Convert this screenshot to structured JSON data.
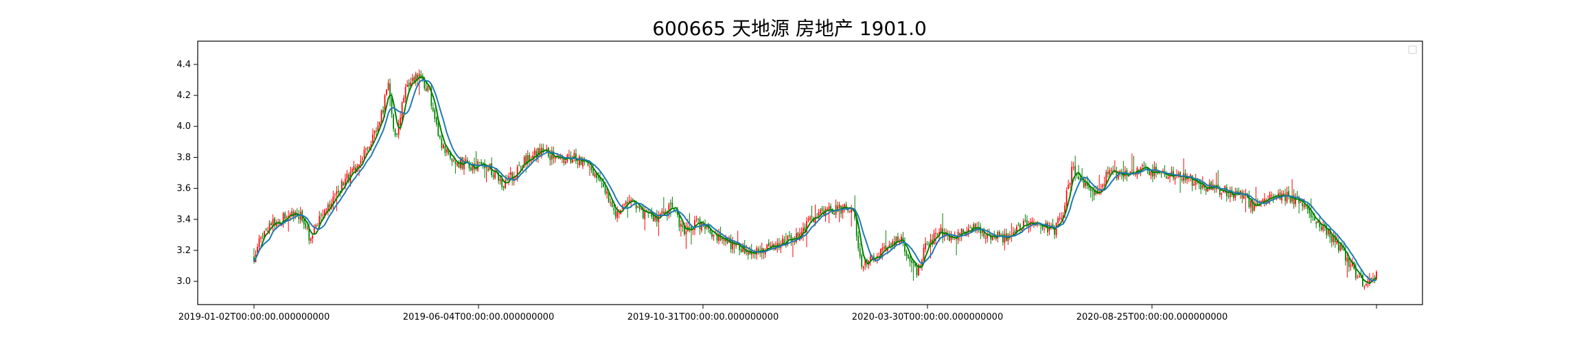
{
  "chart_data": {
    "type": "candlestick",
    "title": "600665 天地源 房地产 1901.0",
    "xlabel": "",
    "ylabel": "",
    "ylim": [
      2.85,
      4.55
    ],
    "y_ticks": [
      3.0,
      3.2,
      3.4,
      3.6,
      3.8,
      4.0,
      4.2,
      4.4
    ],
    "x_tick_labels": [
      "2019-01-02T00:00:00.000000000",
      "2019-06-04T00:00:00.000000000",
      "2019-10-31T00:00:00.000000000",
      "2020-03-30T00:00:00.000000000",
      "2020-08-25T00:00:00.000000000",
      ""
    ],
    "legend": {
      "placement": "top-right",
      "entries": []
    },
    "grid": false,
    "colors": {
      "up": "#ff0000",
      "down": "#008000",
      "ma_short": "#008000",
      "ma_long": "#1f77b4"
    },
    "trend_points": [
      [
        0,
        3.16
      ],
      [
        5,
        3.3
      ],
      [
        12,
        3.38
      ],
      [
        20,
        3.42
      ],
      [
        28,
        3.42
      ],
      [
        32,
        3.28
      ],
      [
        40,
        3.45
      ],
      [
        50,
        3.6
      ],
      [
        60,
        3.75
      ],
      [
        68,
        3.9
      ],
      [
        75,
        4.12
      ],
      [
        78,
        4.28
      ],
      [
        82,
        3.92
      ],
      [
        88,
        4.25
      ],
      [
        95,
        4.33
      ],
      [
        102,
        4.22
      ],
      [
        108,
        3.9
      ],
      [
        115,
        3.78
      ],
      [
        125,
        3.75
      ],
      [
        135,
        3.75
      ],
      [
        145,
        3.62
      ],
      [
        155,
        3.75
      ],
      [
        165,
        3.85
      ],
      [
        175,
        3.8
      ],
      [
        185,
        3.8
      ],
      [
        195,
        3.75
      ],
      [
        205,
        3.55
      ],
      [
        210,
        3.42
      ],
      [
        218,
        3.52
      ],
      [
        225,
        3.45
      ],
      [
        232,
        3.4
      ],
      [
        242,
        3.48
      ],
      [
        250,
        3.32
      ],
      [
        258,
        3.38
      ],
      [
        266,
        3.3
      ],
      [
        275,
        3.25
      ],
      [
        285,
        3.2
      ],
      [
        295,
        3.2
      ],
      [
        305,
        3.25
      ],
      [
        315,
        3.28
      ],
      [
        322,
        3.38
      ],
      [
        330,
        3.45
      ],
      [
        340,
        3.47
      ],
      [
        348,
        3.46
      ],
      [
        353,
        3.1
      ],
      [
        360,
        3.15
      ],
      [
        368,
        3.22
      ],
      [
        376,
        3.28
      ],
      [
        380,
        3.15
      ],
      [
        385,
        3.05
      ],
      [
        390,
        3.22
      ],
      [
        398,
        3.32
      ],
      [
        405,
        3.28
      ],
      [
        415,
        3.35
      ],
      [
        425,
        3.3
      ],
      [
        435,
        3.28
      ],
      [
        445,
        3.35
      ],
      [
        455,
        3.38
      ],
      [
        465,
        3.33
      ],
      [
        470,
        3.45
      ],
      [
        475,
        3.72
      ],
      [
        480,
        3.65
      ],
      [
        488,
        3.55
      ],
      [
        495,
        3.68
      ],
      [
        505,
        3.7
      ],
      [
        515,
        3.72
      ],
      [
        525,
        3.7
      ],
      [
        535,
        3.7
      ],
      [
        545,
        3.65
      ],
      [
        555,
        3.6
      ],
      [
        565,
        3.58
      ],
      [
        575,
        3.55
      ],
      [
        580,
        3.48
      ],
      [
        588,
        3.53
      ],
      [
        600,
        3.55
      ],
      [
        610,
        3.5
      ],
      [
        618,
        3.38
      ],
      [
        625,
        3.3
      ],
      [
        632,
        3.2
      ],
      [
        640,
        3.05
      ],
      [
        646,
        2.97
      ],
      [
        652,
        3.05
      ]
    ],
    "volatility": 0.035,
    "candle_count": 653
  }
}
